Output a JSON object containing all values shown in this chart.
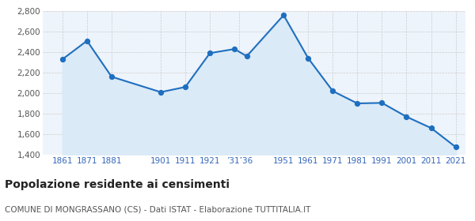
{
  "years": [
    1861,
    1871,
    1881,
    1901,
    1911,
    1921,
    1931,
    1936,
    1951,
    1961,
    1971,
    1981,
    1991,
    2001,
    2011,
    2021
  ],
  "population": [
    2330,
    2510,
    2160,
    2010,
    2060,
    2390,
    2430,
    2360,
    2760,
    2340,
    2020,
    1900,
    1905,
    1770,
    1660,
    1475
  ],
  "x_tick_pos": [
    1861,
    1871,
    1881,
    1901,
    1911,
    1921,
    1933,
    1951,
    1961,
    1971,
    1981,
    1991,
    2001,
    2011,
    2021
  ],
  "x_tick_labels": [
    "1861",
    "1871",
    "1881",
    "1901",
    "1911",
    "1921",
    "’31’36",
    "1951",
    "1961",
    "1971",
    "1981",
    "1991",
    "2001",
    "2011",
    "2021"
  ],
  "ylim": [
    1400,
    2800
  ],
  "yticks": [
    1400,
    1600,
    1800,
    2000,
    2200,
    2400,
    2600,
    2800
  ],
  "xlim": [
    1853,
    2025
  ],
  "line_color": "#1F6FBF",
  "fill_color": "#DAEAF7",
  "marker_color": "#1F6FBF",
  "bg_color": "#EEF4FB",
  "grid_color": "#CCCCCC",
  "title": "Popolazione residente ai censimenti",
  "subtitle": "COMUNE DI MONGRASSANO (CS) - Dati ISTAT - Elaborazione TUTTITALIA.IT",
  "title_fontsize": 10,
  "subtitle_fontsize": 7.5,
  "tick_fontsize": 7.5,
  "x_tick_color": "#3366BB"
}
